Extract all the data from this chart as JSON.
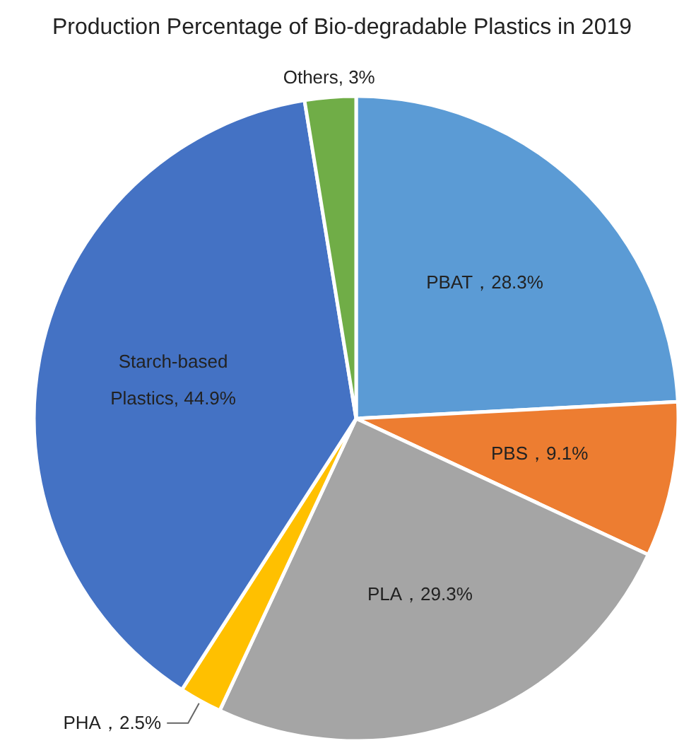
{
  "chart_data": {
    "type": "pie",
    "title": "Production Percentage of Bio-degradable Plastics in 2019",
    "categories": [
      "PBAT，28.3%",
      "PBS，9.1%",
      "PLA，29.3%",
      "PHA，2.5%",
      "Starch-based Plastics, 44.9%",
      "Others, 3%"
    ],
    "values": [
      28.3,
      9.1,
      29.3,
      2.5,
      44.9,
      3
    ],
    "colors": [
      "#5b9bd5",
      "#ed7d31",
      "#a5a5a5",
      "#ffc000",
      "#4472c4",
      "#70ad47"
    ]
  }
}
